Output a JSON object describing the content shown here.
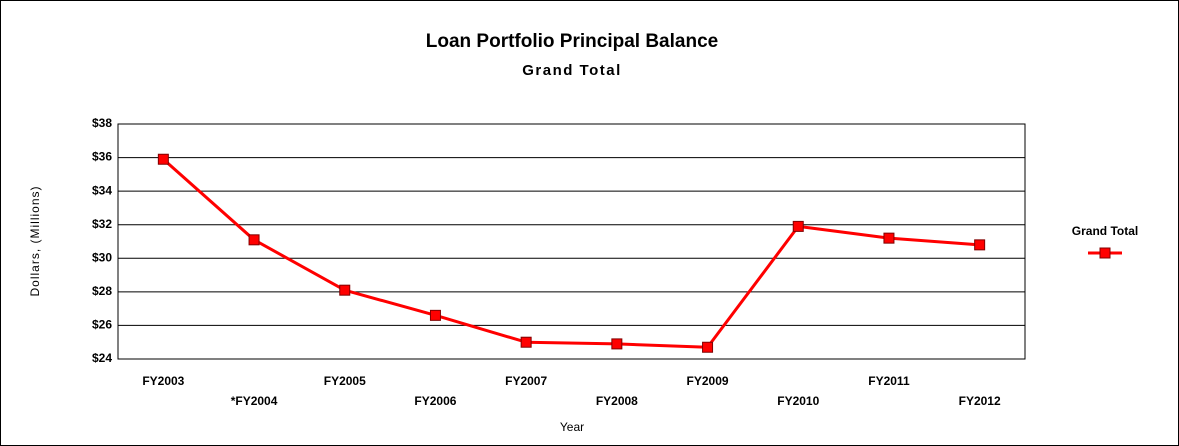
{
  "chart_data": {
    "type": "line",
    "title": "Loan Portfolio Principal Balance",
    "subtitle": "Grand Total",
    "x_label": "Year",
    "y_label": "Dollars, (Millions)",
    "categories": [
      "FY2003",
      "*FY2004",
      "FY2005",
      "FY2006",
      "FY2007",
      "FY2008",
      "FY2009",
      "FY2010",
      "FY2011",
      "FY2012"
    ],
    "series": [
      {
        "name": "Grand Total",
        "color": "#ff0000",
        "values": [
          35.9,
          31.1,
          28.1,
          26.6,
          25.0,
          24.9,
          24.7,
          31.9,
          31.2,
          30.8
        ]
      }
    ],
    "ylim": [
      24,
      38
    ],
    "yticks": [
      {
        "value": 24,
        "label": "$24"
      },
      {
        "value": 26,
        "label": "$26"
      },
      {
        "value": 28,
        "label": "$28"
      },
      {
        "value": 30,
        "label": "$30"
      },
      {
        "value": 32,
        "label": "$32"
      },
      {
        "value": 34,
        "label": "$34"
      },
      {
        "value": 36,
        "label": "$36"
      },
      {
        "value": 38,
        "label": "$38"
      }
    ],
    "grid": true,
    "legend": "right"
  }
}
